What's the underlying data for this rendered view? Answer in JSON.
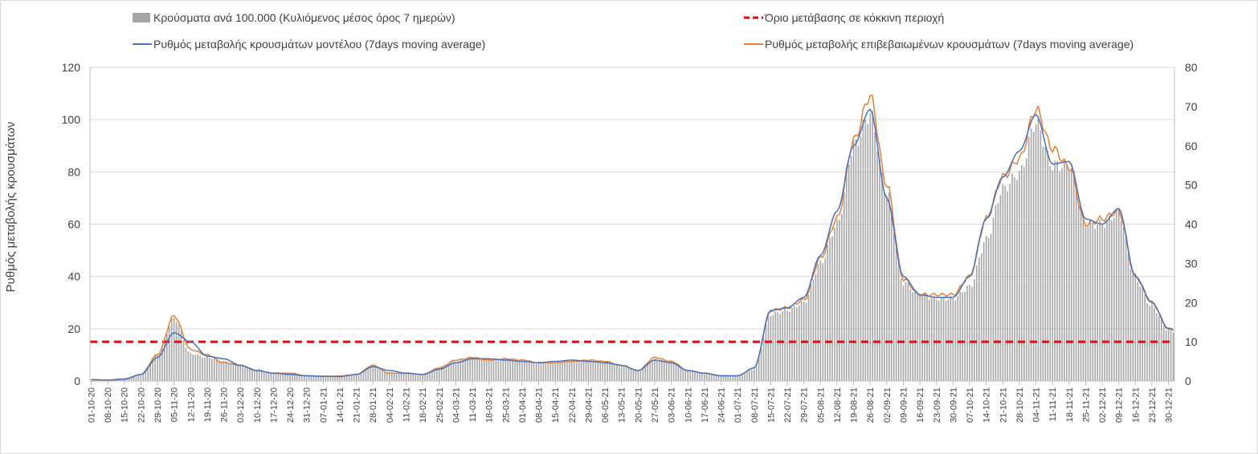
{
  "chart_data": {
    "type": "bar+line",
    "ylabel": "Ρυθμός μεταβολής κρουσμάτων",
    "ylim": [
      0,
      120
    ],
    "yticks": [
      0,
      20,
      40,
      60,
      80,
      100,
      120
    ],
    "y2lim": [
      0,
      80
    ],
    "y2ticks": [
      0,
      10,
      20,
      30,
      40,
      50,
      60,
      70,
      80
    ],
    "legend": {
      "bars": "Κρούσματα ανά 100.000 (Κυλιόμενος μέσος όρος 7 ημερών)",
      "threshold": "Όριο μετάβασης σε κόκκινη περιοχή",
      "model": "Ρυθμός μεταβολής κρουσμάτων μοντέλου (7days moving average)",
      "confirmed": "Ρυθμός μεταβολής επιβεβαιωμένων κρουσμάτων (7days moving average)"
    },
    "legend_placement": "top",
    "colors": {
      "bars": "#a6a6a6",
      "threshold": "#ff0000",
      "model": "#4472c4",
      "confirmed": "#ed7d31",
      "grid": "#d9d9d9"
    },
    "threshold_value": 15,
    "x_start": "01-10-20",
    "x_end": "04-01-22",
    "xtick_labels": [
      "01-10-20",
      "08-10-20",
      "15-10-20",
      "22-10-20",
      "29-10-20",
      "05-11-20",
      "12-11-20",
      "19-11-20",
      "26-11-20",
      "03-12-20",
      "10-12-20",
      "17-12-20",
      "24-12-20",
      "31-12-20",
      "07-01-21",
      "14-01-21",
      "21-01-21",
      "28-01-21",
      "04-02-21",
      "11-02-21",
      "18-02-21",
      "25-02-21",
      "04-03-21",
      "11-03-21",
      "18-03-21",
      "25-03-21",
      "01-04-21",
      "08-04-21",
      "15-04-21",
      "22-04-21",
      "29-04-21",
      "06-05-21",
      "13-05-21",
      "20-05-21",
      "27-05-21",
      "03-06-21",
      "10-06-21",
      "17-06-21",
      "24-06-21",
      "01-07-21",
      "08-07-21",
      "15-07-21",
      "22-07-21",
      "29-07-21",
      "05-08-21",
      "12-08-21",
      "19-08-21",
      "26-08-21",
      "02-09-21",
      "09-09-21",
      "16-09-21",
      "23-09-21",
      "30-09-21",
      "07-10-21",
      "14-10-21",
      "21-10-21",
      "28-10-21",
      "04-11-21",
      "11-11-21",
      "18-11-21",
      "25-11-21",
      "02-12-21",
      "09-12-21",
      "16-12-21",
      "23-12-21",
      "30-12-21"
    ],
    "model_weekly": [
      0.5,
      0.4,
      0.8,
      2.5,
      9,
      18.5,
      15,
      9.5,
      8.5,
      6,
      4,
      3,
      2.5,
      2,
      1.8,
      1.7,
      2.5,
      5.5,
      4,
      3,
      2.5,
      4.5,
      7,
      8.5,
      8.5,
      8,
      7.5,
      7,
      7.5,
      8,
      7.5,
      7,
      6,
      4,
      8,
      7,
      4,
      3,
      2,
      2,
      5,
      27,
      28,
      32,
      48,
      65,
      90,
      104,
      70,
      40,
      33,
      32,
      32,
      40,
      62,
      78,
      88,
      102,
      83,
      84,
      62,
      60,
      66,
      40,
      30,
      20,
      18
    ],
    "confirmed_weekly": [
      0.5,
      0.3,
      0.6,
      2.5,
      10,
      25,
      12,
      10,
      7,
      6,
      4,
      3,
      3,
      2,
      1.8,
      1.9,
      2.5,
      6,
      3,
      3,
      2.5,
      5,
      8,
      9,
      8,
      8.5,
      8,
      7,
      7,
      7.5,
      8,
      7.5,
      6,
      4,
      9,
      7.5,
      4,
      3,
      2,
      2,
      5,
      27,
      28,
      31,
      47,
      62,
      92,
      109,
      75,
      39,
      33,
      33,
      33,
      40,
      62,
      78,
      85,
      104,
      89,
      82,
      60,
      62,
      65,
      40,
      30,
      20,
      18
    ],
    "bars_weekly": [
      0.2,
      0.2,
      0.4,
      1.5,
      7,
      16,
      7,
      6,
      5,
      4,
      3,
      2,
      2,
      1.3,
      1.2,
      1.2,
      1.8,
      4,
      2,
      2,
      1.8,
      3.5,
      5,
      6,
      5.5,
      5.5,
      5,
      4.5,
      4.5,
      5,
      5,
      4.8,
      4,
      2.5,
      5.5,
      5,
      2.5,
      2,
      1.3,
      1.3,
      3,
      17,
      18,
      20,
      30,
      40,
      60,
      68,
      48,
      25,
      22,
      21,
      21,
      24,
      36,
      49,
      53,
      66,
      55,
      55,
      40,
      40,
      43,
      26,
      19,
      13,
      11
    ]
  }
}
